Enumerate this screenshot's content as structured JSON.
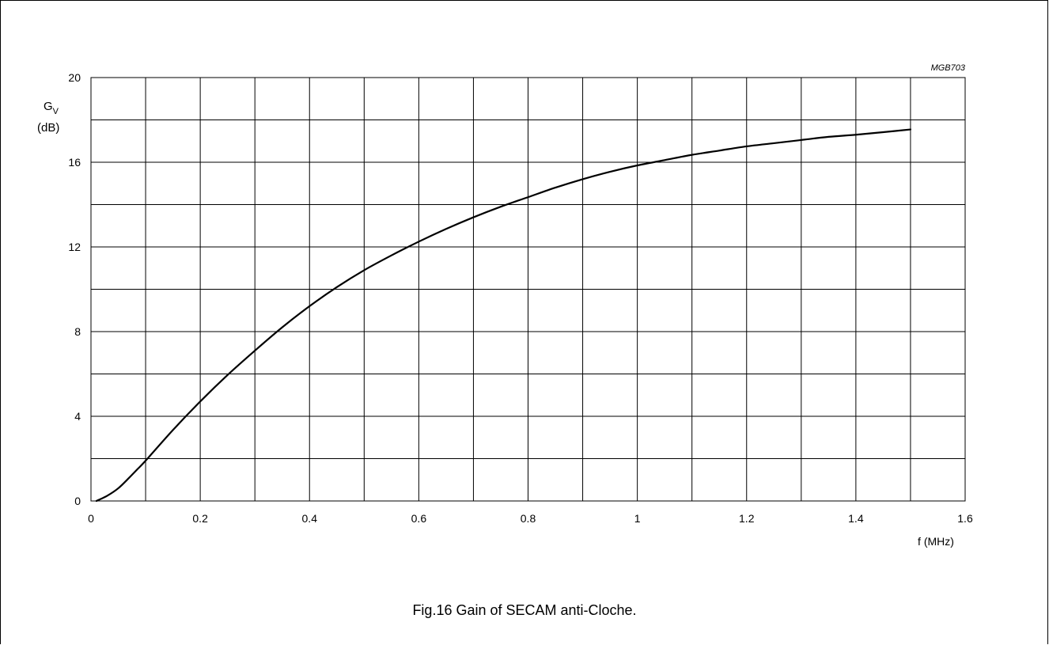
{
  "figure": {
    "code": "MGB703",
    "caption": "Fig.16  Gain of SECAM anti-Cloche."
  },
  "chart_data": {
    "type": "line",
    "title": "",
    "xlabel": "f (MHz)",
    "ylabel": "G",
    "ylabel_subscript": "V",
    "ylabel_unit": "(dB)",
    "xlim": [
      0,
      1.6
    ],
    "ylim": [
      0,
      20
    ],
    "x_ticks": [
      0,
      0.2,
      0.4,
      0.6,
      0.8,
      1,
      1.2,
      1.4,
      1.6
    ],
    "x_tick_labels": [
      "0",
      "0.2",
      "0.4",
      "0.6",
      "0.8",
      "1",
      "1.2",
      "1.4",
      "1.6"
    ],
    "y_ticks": [
      0,
      4,
      8,
      12,
      16,
      20
    ],
    "y_tick_labels": [
      "0",
      "4",
      "8",
      "12",
      "16",
      "20"
    ],
    "x_grid_step": 0.1,
    "y_grid_step": 2,
    "grid": true,
    "series": [
      {
        "x": [
          0.01,
          0.03,
          0.05,
          0.07,
          0.085,
          0.1,
          0.15,
          0.2,
          0.25,
          0.3,
          0.35,
          0.4,
          0.45,
          0.5,
          0.55,
          0.6,
          0.65,
          0.7,
          0.75,
          0.8,
          0.85,
          0.9,
          0.95,
          1.0,
          1.05,
          1.1,
          1.15,
          1.2,
          1.25,
          1.3,
          1.35,
          1.4,
          1.45,
          1.5
        ],
        "y": [
          0.0,
          0.25,
          0.6,
          1.1,
          1.5,
          1.9,
          3.35,
          4.7,
          5.95,
          7.1,
          8.2,
          9.2,
          10.1,
          10.9,
          11.6,
          12.25,
          12.85,
          13.4,
          13.9,
          14.35,
          14.8,
          15.2,
          15.55,
          15.85,
          16.1,
          16.35,
          16.55,
          16.75,
          16.9,
          17.05,
          17.2,
          17.3,
          17.42,
          17.55
        ]
      }
    ]
  }
}
